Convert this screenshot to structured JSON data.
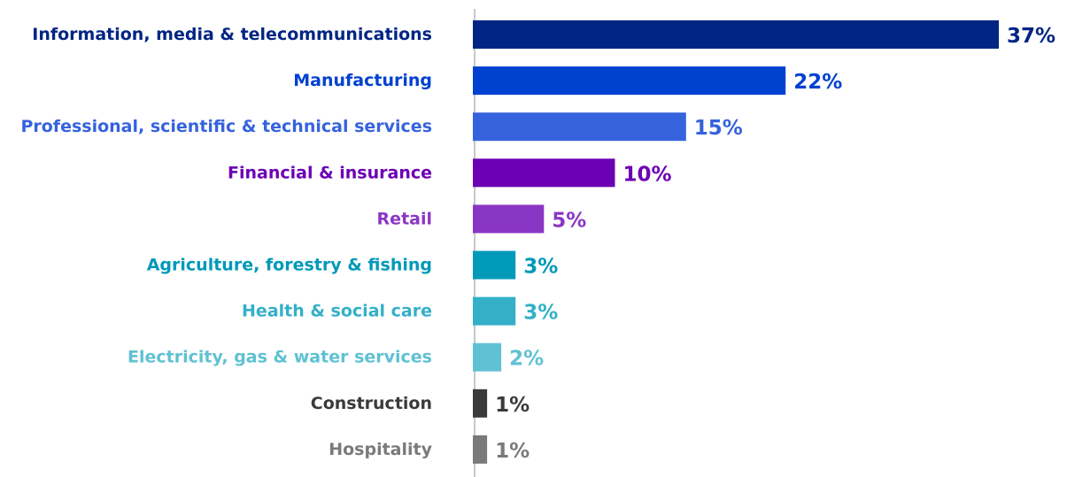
{
  "chart_data": {
    "type": "bar",
    "orientation": "horizontal",
    "categories": [
      "Information, media & telecommunications",
      "Manufacturing",
      "Professional, scientific & technical services",
      "Financial & insurance",
      "Retail",
      "Agriculture, forestry & fishing",
      "Health & social care",
      "Electricity, gas & water services",
      "Construction",
      "Hospitality"
    ],
    "values": [
      37,
      22,
      15,
      10,
      5,
      3,
      3,
      2,
      1,
      1
    ],
    "value_labels": [
      "37%",
      "22%",
      "15%",
      "10%",
      "5%",
      "3%",
      "3%",
      "2%",
      "1%",
      "1%"
    ],
    "colors": [
      "#002583",
      "#0041d0",
      "#3563dd",
      "#6c00b4",
      "#8a36c4",
      "#0099b9",
      "#33b0c8",
      "#5fc1d3",
      "#3a3a3a",
      "#7a7a7a"
    ],
    "unit": "%",
    "xlim": [
      0,
      37
    ],
    "grid": false,
    "legend": "none",
    "title": "",
    "xlabel": "",
    "ylabel": ""
  }
}
